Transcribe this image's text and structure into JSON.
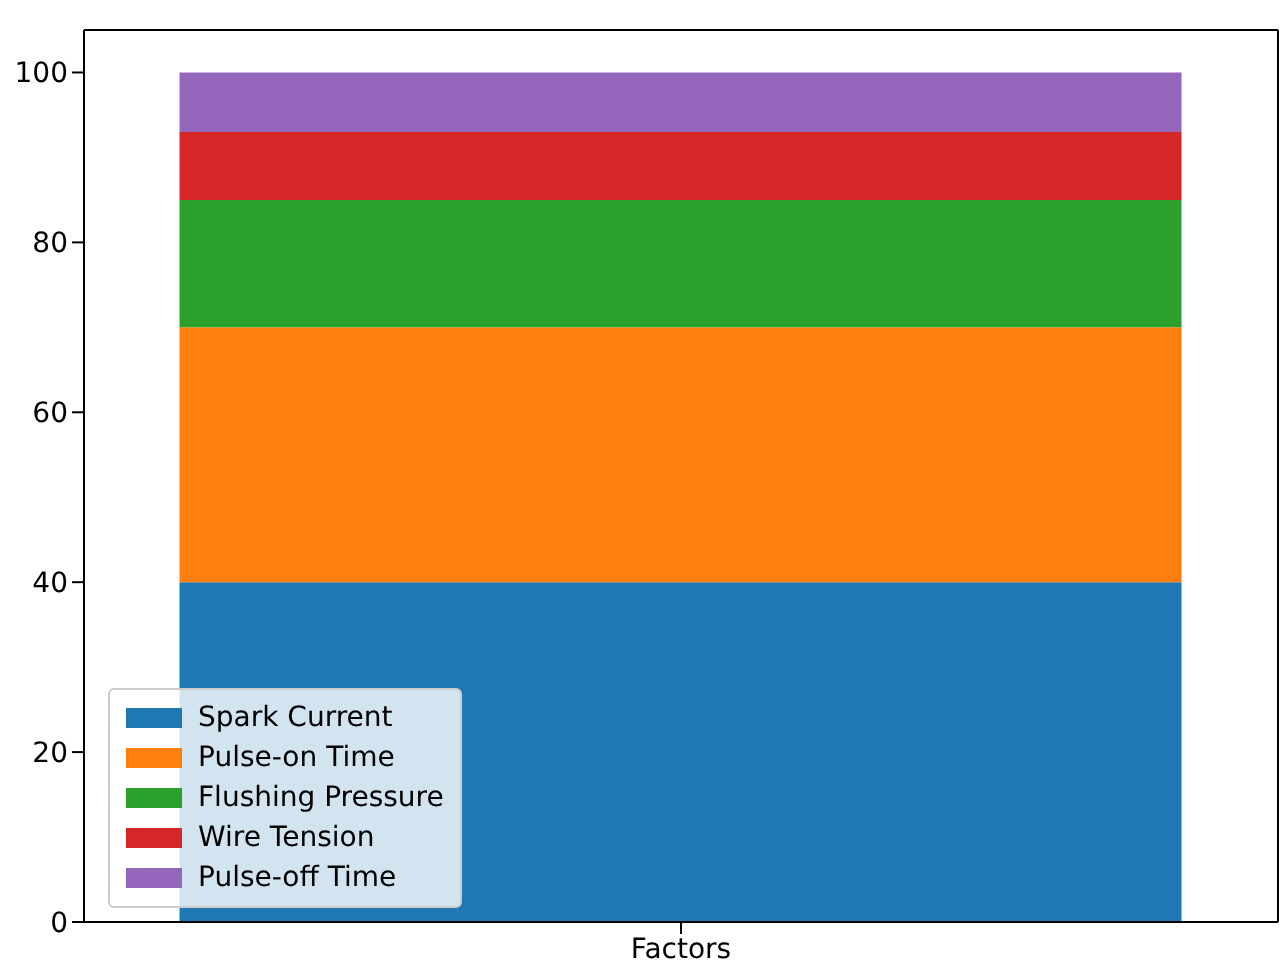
{
  "chart_data": {
    "type": "bar",
    "stacked": true,
    "categories": [
      "Factors"
    ],
    "series": [
      {
        "name": "Spark Current",
        "color": "#1f77b4",
        "values": [
          40
        ]
      },
      {
        "name": "Pulse-on Time",
        "color": "#ff7f0e",
        "values": [
          30
        ]
      },
      {
        "name": "Flushing Pressure",
        "color": "#2ca02c",
        "values": [
          15
        ]
      },
      {
        "name": "Wire Tension",
        "color": "#d62728",
        "values": [
          8
        ]
      },
      {
        "name": "Pulse-off Time",
        "color": "#9467bd",
        "values": [
          7
        ]
      }
    ],
    "ylim": [
      0,
      105
    ],
    "yticks": [
      0,
      20,
      40,
      60,
      80,
      100
    ],
    "grid": false,
    "legend": "bottom left"
  }
}
